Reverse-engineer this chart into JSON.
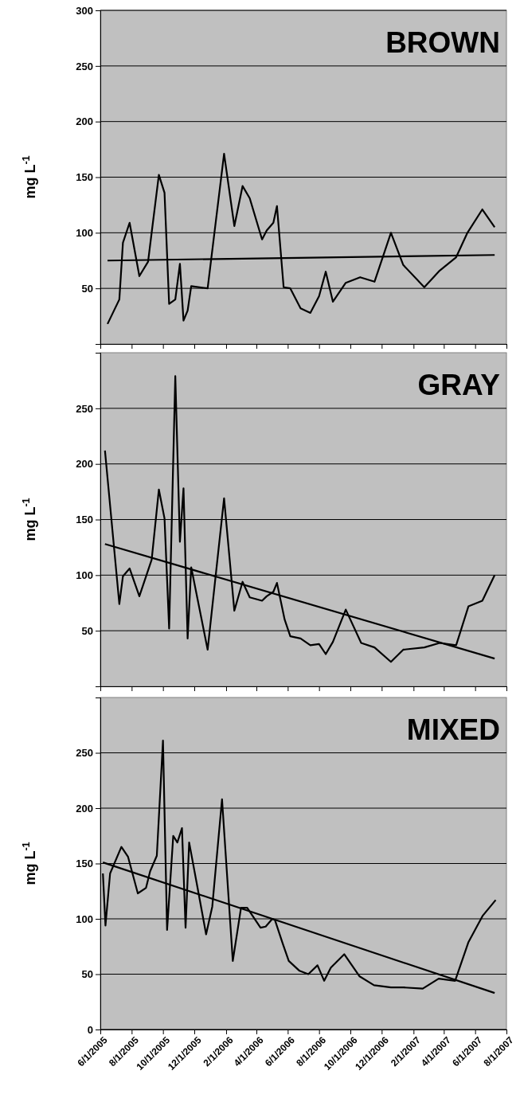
{
  "chart_data": [
    {
      "type": "line",
      "title": "BROWN",
      "ylabel": "mg L$^{-1}$",
      "grid": "y",
      "tick_labels": "y",
      "xlim": [
        "2005-06-01",
        "2007-08-01"
      ],
      "ylim": [
        0,
        300
      ],
      "xticks": [
        {
          "value": "2005-06-01",
          "label": null
        },
        {
          "value": "2005-08-01",
          "label": null
        },
        {
          "value": "2005-10-01",
          "label": null
        },
        {
          "value": "2005-12-01",
          "label": null
        },
        {
          "value": "2006-02-01",
          "label": null
        },
        {
          "value": "2006-04-01",
          "label": null
        },
        {
          "value": "2006-06-01",
          "label": null
        },
        {
          "value": "2006-08-01",
          "label": null
        },
        {
          "value": "2006-10-01",
          "label": null
        },
        {
          "value": "2006-12-01",
          "label": null
        },
        {
          "value": "2007-02-01",
          "label": null
        },
        {
          "value": "2007-04-01",
          "label": null
        },
        {
          "value": "2007-06-01",
          "label": null
        },
        {
          "value": "2007-08-01",
          "label": null
        }
      ],
      "yticks": [
        50,
        100,
        150,
        200,
        250,
        300
      ],
      "series": [
        {
          "color": "#000000",
          "x": [
            "2005-06-15",
            "2005-07-08",
            "2005-07-15",
            "2005-07-28",
            "2005-08-16",
            "2005-09-02",
            "2005-09-10",
            "2005-09-23",
            "2005-10-04",
            "2005-10-13",
            "2005-10-25",
            "2005-11-03",
            "2005-11-10",
            "2005-11-18",
            "2005-11-25",
            "2005-12-27",
            "2006-01-28",
            "2006-02-17",
            "2006-03-05",
            "2006-03-19",
            "2006-04-12",
            "2006-04-21",
            "2006-05-04",
            "2006-05-11",
            "2006-05-24",
            "2006-06-06",
            "2006-06-26",
            "2006-07-15",
            "2006-08-01",
            "2006-08-14",
            "2006-08-28",
            "2006-09-22",
            "2006-10-20",
            "2006-11-17",
            "2006-12-19",
            "2007-01-12",
            "2007-02-22",
            "2007-03-24",
            "2007-04-25",
            "2007-05-17",
            "2007-06-15",
            "2007-07-09"
          ],
          "values": [
            18,
            40,
            91,
            109,
            61,
            74,
            104,
            152,
            136,
            36,
            40,
            72,
            21,
            30,
            52,
            50,
            171,
            106,
            142,
            131,
            94,
            102,
            109,
            124,
            51,
            50,
            32,
            28,
            43,
            65,
            38,
            55,
            60,
            56,
            100,
            71,
            51,
            66,
            78,
            100,
            121,
            105
          ]
        },
        {
          "color": "#000000",
          "x": [
            "2005-06-15",
            "2007-07-09"
          ],
          "values": [
            75,
            80
          ]
        }
      ]
    },
    {
      "type": "line",
      "title": "GRAY",
      "ylabel": "mg L$^{-1}$",
      "grid": "y",
      "tick_labels": "y",
      "xlim": [
        "2005-06-01",
        "2007-08-01"
      ],
      "ylim": [
        0,
        300
      ],
      "xticks": [
        {
          "value": "2005-06-01",
          "label": null
        },
        {
          "value": "2005-08-01",
          "label": null
        },
        {
          "value": "2005-10-01",
          "label": null
        },
        {
          "value": "2005-12-01",
          "label": null
        },
        {
          "value": "2006-02-01",
          "label": null
        },
        {
          "value": "2006-04-01",
          "label": null
        },
        {
          "value": "2006-06-01",
          "label": null
        },
        {
          "value": "2006-08-01",
          "label": null
        },
        {
          "value": "2006-10-01",
          "label": null
        },
        {
          "value": "2006-12-01",
          "label": null
        },
        {
          "value": "2007-02-01",
          "label": null
        },
        {
          "value": "2007-04-01",
          "label": null
        },
        {
          "value": "2007-06-01",
          "label": null
        },
        {
          "value": "2007-08-01",
          "label": null
        }
      ],
      "yticks": [
        50,
        100,
        150,
        200,
        250
      ],
      "series": [
        {
          "color": "#000000",
          "x": [
            "2005-06-10",
            "2005-07-08",
            "2005-07-15",
            "2005-07-28",
            "2005-08-16",
            "2005-09-09",
            "2005-09-23",
            "2005-10-04",
            "2005-10-13",
            "2005-10-25",
            "2005-11-03",
            "2005-11-10",
            "2005-11-18",
            "2005-11-25",
            "2005-12-27",
            "2006-01-28",
            "2006-02-17",
            "2006-03-05",
            "2006-03-19",
            "2006-04-12",
            "2006-04-21",
            "2006-05-04",
            "2006-05-11",
            "2006-05-26",
            "2006-06-06",
            "2006-06-26",
            "2006-07-15",
            "2006-08-01",
            "2006-08-14",
            "2006-08-28",
            "2006-09-22",
            "2006-10-22",
            "2006-11-17",
            "2006-12-19",
            "2007-01-12",
            "2007-02-22",
            "2007-03-24",
            "2007-04-25",
            "2007-05-19",
            "2007-06-15",
            "2007-07-09"
          ],
          "values": [
            212,
            74,
            99,
            106,
            81,
            114,
            177,
            151,
            52,
            279,
            130,
            178,
            43,
            107,
            33,
            169,
            68,
            94,
            80,
            77,
            81,
            85,
            93,
            60,
            45,
            43,
            37,
            38,
            29,
            40,
            69,
            39,
            35,
            22,
            33,
            35,
            39,
            37,
            72,
            77,
            100
          ]
        },
        {
          "color": "#000000",
          "x": [
            "2005-06-10",
            "2007-07-09"
          ],
          "values": [
            128,
            25
          ]
        }
      ]
    },
    {
      "type": "line",
      "title": "MIXED",
      "ylabel": "mg L$^{-1}$",
      "grid": "y",
      "xlim": [
        "2005-06-01",
        "2007-08-01"
      ],
      "ylim": [
        0,
        300
      ],
      "xticks": [
        {
          "value": "2005-06-01",
          "label": "6/1/2005"
        },
        {
          "value": "2005-08-01",
          "label": "8/1/2005"
        },
        {
          "value": "2005-10-01",
          "label": "10/1/2005"
        },
        {
          "value": "2005-12-01",
          "label": "12/1/2005"
        },
        {
          "value": "2006-02-01",
          "label": "2/1/2006"
        },
        {
          "value": "2006-04-01",
          "label": "4/1/2006"
        },
        {
          "value": "2006-06-01",
          "label": "6/1/2006"
        },
        {
          "value": "2006-08-01",
          "label": "8/1/2006"
        },
        {
          "value": "2006-10-01",
          "label": "10/1/2006"
        },
        {
          "value": "2006-12-01",
          "label": "12/1/2006"
        },
        {
          "value": "2007-02-01",
          "label": "2/1/2007"
        },
        {
          "value": "2007-04-01",
          "label": "4/1/2007"
        },
        {
          "value": "2007-06-01",
          "label": "6/1/2007"
        },
        {
          "value": "2007-08-01",
          "label": "8/1/2007"
        }
      ],
      "yticks": [
        0,
        50,
        100,
        150,
        200,
        250
      ],
      "series": [
        {
          "color": "#000000",
          "x": [
            "2005-06-06",
            "2005-06-11",
            "2005-06-20",
            "2005-07-12",
            "2005-07-25",
            "2005-08-13",
            "2005-08-29",
            "2005-09-06",
            "2005-09-19",
            "2005-10-01",
            "2005-10-09",
            "2005-10-21",
            "2005-10-29",
            "2005-11-07",
            "2005-11-14",
            "2005-11-21",
            "2005-12-07",
            "2005-12-24",
            "2006-01-05",
            "2006-01-24",
            "2006-02-14",
            "2006-03-02",
            "2006-03-14",
            "2006-04-09",
            "2006-04-19",
            "2006-05-02",
            "2006-05-07",
            "2006-05-22",
            "2006-06-03",
            "2006-06-24",
            "2006-07-11",
            "2006-07-29",
            "2006-08-11",
            "2006-08-24",
            "2006-09-19",
            "2006-10-19",
            "2006-11-16",
            "2006-12-19",
            "2007-01-13",
            "2007-02-19",
            "2007-03-22",
            "2007-04-23",
            "2007-05-19",
            "2007-06-16",
            "2007-07-11"
          ],
          "values": [
            141,
            94,
            141,
            165,
            156,
            123,
            128,
            143,
            157,
            261,
            90,
            175,
            169,
            182,
            92,
            169,
            129,
            86,
            111,
            208,
            62,
            110,
            110,
            92,
            93,
            100,
            99,
            78,
            62,
            53,
            50,
            58,
            44,
            56,
            68,
            48,
            40,
            38,
            38,
            37,
            46,
            44,
            79,
            103,
            117
          ]
        },
        {
          "color": "#000000",
          "x": [
            "2005-06-06",
            "2007-07-09"
          ],
          "values": [
            151,
            33
          ]
        }
      ]
    }
  ]
}
